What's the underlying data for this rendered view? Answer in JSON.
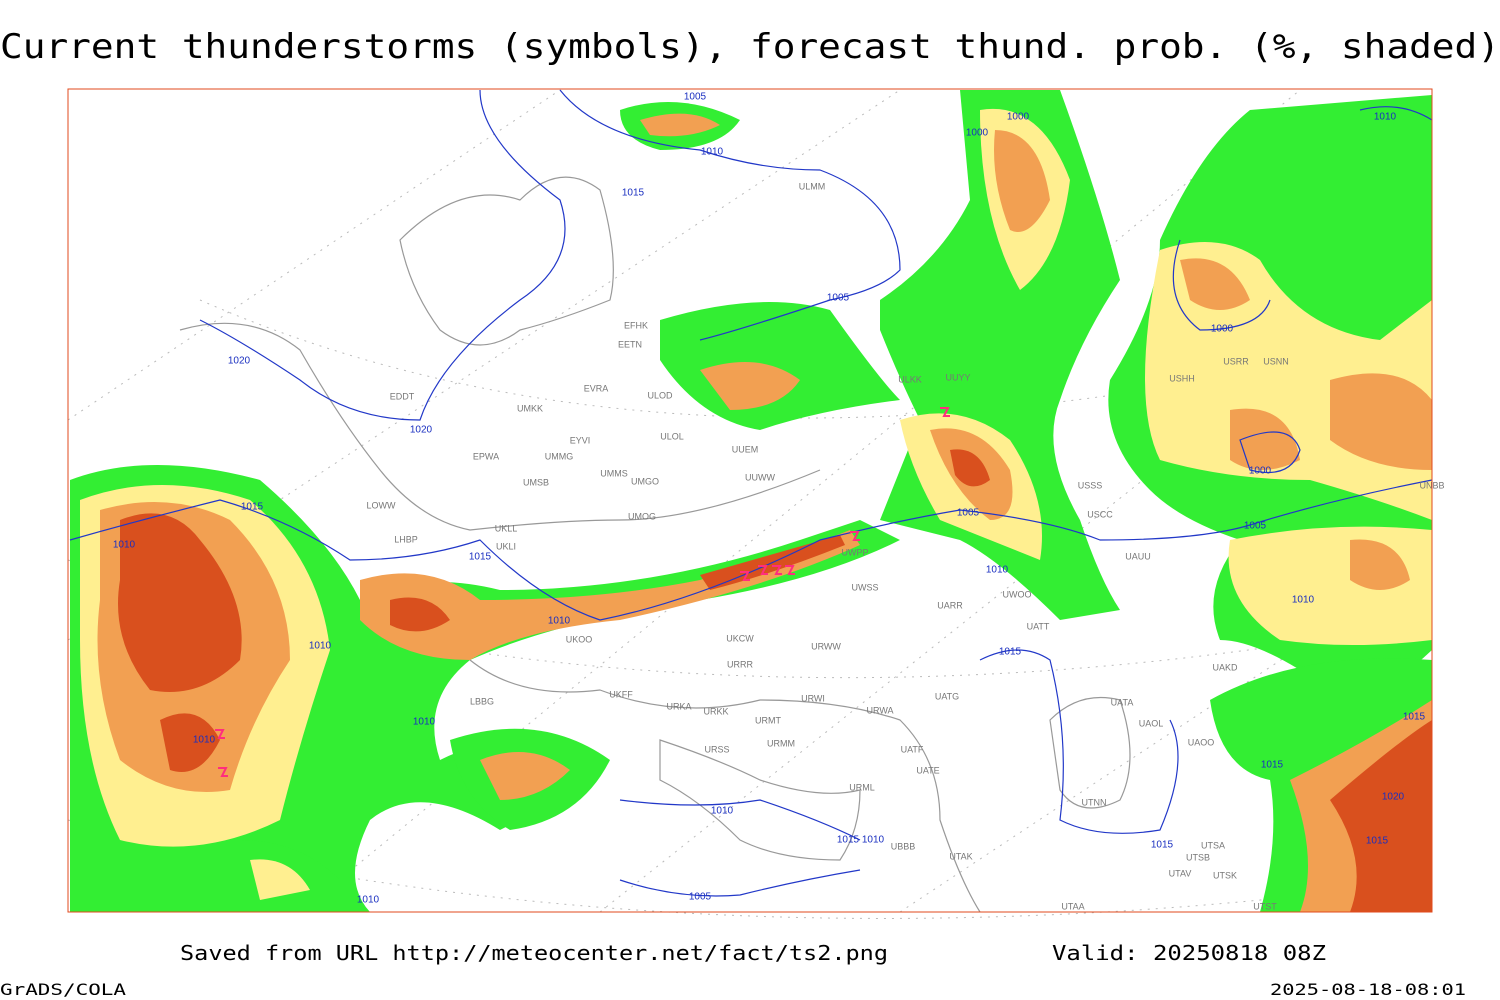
{
  "header": {
    "title": "Current thunderstorms (symbols), forecast thund. prob. (%, shaded)"
  },
  "map": {
    "isobar_labels": [
      "1005",
      "1000",
      "1000",
      "1010",
      "1010",
      "1015",
      "1005",
      "1000",
      "1020",
      "1020",
      "1000",
      "1015",
      "1005",
      "1005",
      "1010",
      "1015",
      "1010",
      "1010",
      "1010",
      "1010",
      "1015",
      "1015",
      "1010",
      "1010",
      "1015",
      "1020",
      "1010",
      "1015",
      "1010",
      "1015",
      "1015",
      "1010",
      "1005"
    ],
    "station_labels": [
      "ULMM",
      "EFHK",
      "EETN",
      "EVRA",
      "ULOD",
      "UMKK",
      "EDDT",
      "EYVI",
      "ULOL",
      "EPWA",
      "UMMG",
      "UUEM",
      "UMMS",
      "UMGO",
      "UUWW",
      "UMSB",
      "LOWW",
      "UMOG",
      "UKLL",
      "UKLI",
      "LHBP",
      "UWPP",
      "UWSS",
      "UARR",
      "UWOO",
      "UATT",
      "UKOO",
      "UKCW",
      "URWW",
      "URRR",
      "UKFF",
      "URKA",
      "URKK",
      "URWI",
      "UATG",
      "URWA",
      "URMT",
      "URSS",
      "URMM",
      "UATF",
      "UATE",
      "URML",
      "USSS",
      "USCC",
      "UAUU",
      "UUYY",
      "ULKK",
      "USHH",
      "USRR",
      "USNN",
      "UNBB",
      "UAKD",
      "UATA",
      "UAOL",
      "UAOO",
      "UTNN",
      "UTSA",
      "UTSB",
      "UTAV",
      "UTSK",
      "UTAA",
      "UTST",
      "UBBB",
      "UTAK",
      "LBBG"
    ]
  },
  "footer": {
    "source": "Saved from URL http://meteocenter.net/fact/ts2.png",
    "valid": "Valid: 20250818 08Z",
    "software": "GrADS/COLA",
    "timestamp": "2025-08-18-08:01"
  }
}
